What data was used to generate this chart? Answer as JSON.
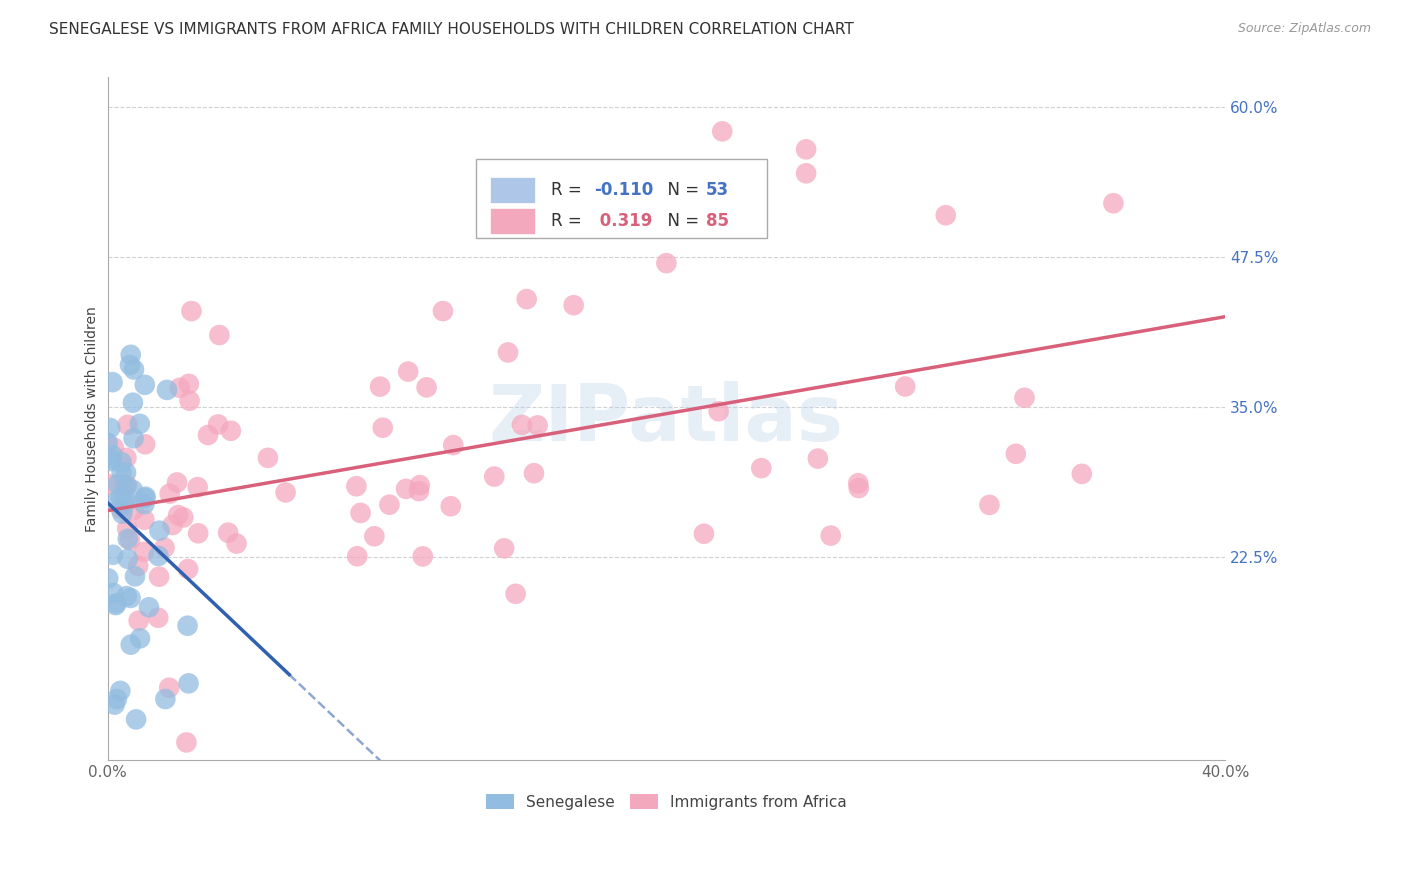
{
  "title": "SENEGALESE VS IMMIGRANTS FROM AFRICA FAMILY HOUSEHOLDS WITH CHILDREN CORRELATION CHART",
  "source": "Source: ZipAtlas.com",
  "ylabel": "Family Households with Children",
  "xlim": [
    0.0,
    0.4
  ],
  "ylim": [
    0.055,
    0.625
  ],
  "yticks": [
    0.225,
    0.35,
    0.475,
    0.6
  ],
  "ytick_labels": [
    "22.5%",
    "35.0%",
    "47.5%",
    "60.0%"
  ],
  "series1_label": "Senegalese",
  "series2_label": "Immigrants from Africa",
  "series1_color": "#92bce0",
  "series2_color": "#f4a8be",
  "series1_line_color": "#3060b0",
  "series2_line_color": "#d9607a",
  "title_fontsize": 11,
  "axis_label_fontsize": 10,
  "tick_fontsize": 11,
  "background_color": "#ffffff",
  "grid_color": "#cccccc",
  "watermark_color": "#b8d0e8",
  "legend_R1": "-0.110",
  "legend_N1": "53",
  "legend_R2": "0.319",
  "legend_N2": "85"
}
